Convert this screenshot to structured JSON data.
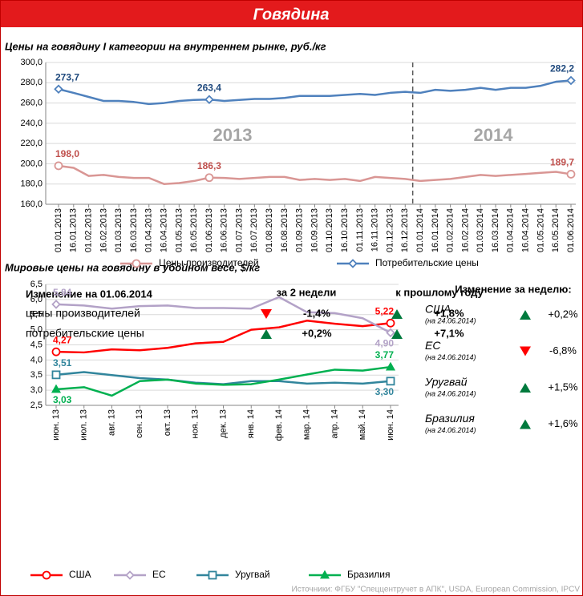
{
  "header": {
    "title": "Говядина"
  },
  "chart_data": [
    {
      "type": "line",
      "title": "Цены на говядину I категории на внутреннем рынке, руб./кг",
      "categories": [
        "01.01.2013",
        "16.01.2013",
        "01.02.2013",
        "16.02.2013",
        "01.03.2013",
        "16.03.2013",
        "01.04.2013",
        "16.04.2013",
        "01.05.2013",
        "16.05.2013",
        "01.06.2013",
        "16.06.2013",
        "01.07.2013",
        "16.07.2013",
        "01.08.2013",
        "16.08.2013",
        "01.09.2013",
        "16.09.2013",
        "01.10.2013",
        "16.10.2013",
        "01.11.2013",
        "16.11.2013",
        "01.12.2013",
        "16.12.2013",
        "01.01.2014",
        "16.01.2014",
        "01.02.2014",
        "16.02.2014",
        "01.03.2014",
        "16.03.2014",
        "01.04.2014",
        "16.04.2014",
        "01.05.2014",
        "16.05.2014",
        "01.06.2014"
      ],
      "series": [
        {
          "name": "Цены производителей",
          "color": "#d99694",
          "values": [
            198.0,
            196,
            188,
            189,
            187,
            186,
            186,
            180,
            181,
            183,
            186.3,
            186,
            185,
            186,
            187,
            187,
            184,
            185,
            184,
            185,
            183,
            187,
            186,
            185,
            183,
            184,
            185,
            187,
            189,
            188,
            189,
            190,
            191,
            192,
            189.7
          ],
          "value_labels": [
            "198,0",
            null,
            null,
            null,
            null,
            null,
            null,
            null,
            null,
            null,
            "186,3",
            null,
            null,
            null,
            null,
            null,
            null,
            null,
            null,
            null,
            null,
            null,
            null,
            null,
            null,
            null,
            null,
            null,
            null,
            null,
            null,
            null,
            null,
            null,
            "189,7"
          ]
        },
        {
          "name": "Потребительские цены",
          "color": "#4f81bd",
          "values": [
            273.7,
            270,
            266,
            262,
            262,
            261,
            259,
            260,
            262,
            263,
            263.4,
            262,
            263,
            264,
            264,
            265,
            267,
            267,
            267,
            268,
            269,
            268,
            270,
            271,
            270,
            273,
            272,
            273,
            275,
            273,
            275,
            275,
            277,
            281,
            282.2
          ],
          "value_labels": [
            "273,7",
            null,
            null,
            null,
            null,
            null,
            null,
            null,
            null,
            null,
            "263,4",
            null,
            null,
            null,
            null,
            null,
            null,
            null,
            null,
            null,
            null,
            null,
            null,
            null,
            null,
            null,
            null,
            null,
            null,
            null,
            null,
            null,
            null,
            null,
            "282,2"
          ]
        }
      ],
      "ylim": [
        160,
        300
      ],
      "yticks": [
        {
          "value": 160,
          "label": "160,0"
        },
        {
          "value": 180,
          "label": "180,0"
        },
        {
          "value": 200,
          "label": "200,0"
        },
        {
          "value": 220,
          "label": "220,0"
        },
        {
          "value": 240,
          "label": "240,0"
        },
        {
          "value": 260,
          "label": "260,0"
        },
        {
          "value": 280,
          "label": "280,0"
        },
        {
          "value": 300,
          "label": "300,0"
        }
      ],
      "annotations": [
        "2013",
        "2014"
      ],
      "grid": true
    },
    {
      "type": "line",
      "title": "Мировые цены на говядину в убойном весе, $/кг",
      "categories": [
        "июн. 13",
        "июл. 13",
        "авг. 13",
        "сен. 13",
        "окт. 13",
        "ноя. 13",
        "дек. 13",
        "янв. 14",
        "фев. 14",
        "мар. 14",
        "апр. 14",
        "май. 14",
        "июн. 14"
      ],
      "series": [
        {
          "name": "США",
          "color": "#ff0000",
          "values": [
            4.27,
            4.25,
            4.35,
            4.32,
            4.4,
            4.55,
            4.6,
            5.0,
            5.08,
            5.3,
            5.2,
            5.12,
            5.22
          ],
          "value_labels": [
            "4,27",
            null,
            null,
            null,
            null,
            null,
            null,
            null,
            null,
            null,
            null,
            null,
            "5,22"
          ]
        },
        {
          "name": "ЕС",
          "color": "#b3a2c7",
          "values": [
            5.84,
            5.8,
            5.7,
            5.78,
            5.8,
            5.72,
            5.72,
            5.7,
            6.08,
            5.58,
            5.55,
            5.38,
            4.9
          ],
          "value_labels": [
            "5,84",
            null,
            null,
            null,
            null,
            null,
            null,
            null,
            null,
            null,
            null,
            null,
            "4,90"
          ]
        },
        {
          "name": "Уругвай",
          "color": "#31859c",
          "values": [
            3.51,
            3.6,
            3.5,
            3.4,
            3.35,
            3.25,
            3.2,
            3.3,
            3.3,
            3.22,
            3.25,
            3.22,
            3.3
          ],
          "value_labels": [
            "3,51",
            null,
            null,
            null,
            null,
            null,
            null,
            null,
            null,
            null,
            null,
            null,
            "3,30"
          ]
        },
        {
          "name": "Бразилия",
          "color": "#00b050",
          "values": [
            3.03,
            3.1,
            2.82,
            3.3,
            3.35,
            3.22,
            3.18,
            3.2,
            3.35,
            3.52,
            3.68,
            3.65,
            3.77
          ],
          "value_labels": [
            "3,03",
            null,
            null,
            null,
            null,
            null,
            null,
            null,
            null,
            null,
            null,
            null,
            "3,77"
          ]
        }
      ],
      "ylim": [
        2.5,
        6.5
      ],
      "yticks": [
        {
          "value": 2.5,
          "label": "2,5"
        },
        {
          "value": 3,
          "label": "3,0"
        },
        {
          "value": 3.5,
          "label": "3,5"
        },
        {
          "value": 4,
          "label": "4,0"
        },
        {
          "value": 4.5,
          "label": "4,5"
        },
        {
          "value": 5,
          "label": "5,0"
        },
        {
          "value": 5.5,
          "label": "5,5"
        },
        {
          "value": 6,
          "label": "6,0"
        },
        {
          "value": 6.5,
          "label": "6,5"
        }
      ],
      "grid": true
    }
  ],
  "domestic_change": {
    "title": "Изменение на 01.06.2014",
    "columns": [
      "за 2 недели",
      "к прошлому году"
    ],
    "rows": [
      {
        "label": "цены производителей",
        "values": [
          "-1,4%",
          "+1,8%"
        ]
      },
      {
        "label": "потребительские цены",
        "values": [
          "+0,2%",
          "+7,1%"
        ]
      }
    ]
  },
  "world_change": {
    "title": "Изменение за неделю:",
    "rows": [
      {
        "name": "США",
        "note": "(на 24.06.2014)",
        "change": "+0,2%"
      },
      {
        "name": "ЕС",
        "note": "(на 24.06.2014)",
        "change": "-6,8%"
      },
      {
        "name": "Уругвай",
        "note": "(на 24.06.2014)",
        "change": "+1,5%"
      },
      {
        "name": "Бразилия",
        "note": "(на 24.06.2014)",
        "change": "+1,6%"
      }
    ]
  },
  "source": "Источники: ФГБУ \"Спеццентручет в АПК\", USDA, European Commission, IPCV"
}
